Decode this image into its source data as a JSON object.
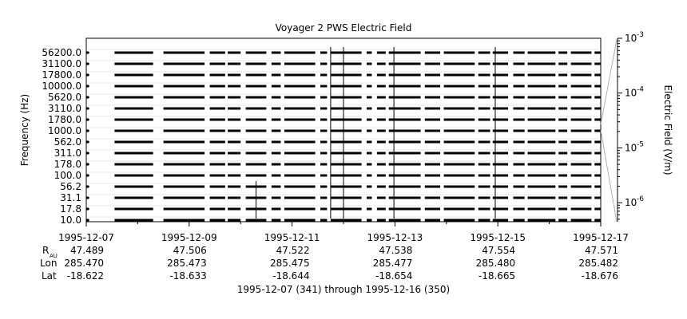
{
  "chart_data": {
    "type": "heatmap",
    "title": "Voyager 2 PWS Electric Field",
    "ylabel": "Frequency (Hz)",
    "colorbar_label": "Electric Field (V/m)",
    "colorbar_scale": "log",
    "colorbar_range": [
      4.5e-07,
      0.001
    ],
    "colorbar_ticks": [
      {
        "base": "10",
        "exp": "-3",
        "value": 0.001
      },
      {
        "base": "10",
        "exp": "-4",
        "value": 0.0001
      },
      {
        "base": "10",
        "exp": "-5",
        "value": 1e-05
      },
      {
        "base": "10",
        "exp": "-6",
        "value": 1e-06
      }
    ],
    "y_channels": [
      "56200.0",
      "31100.0",
      "17800.0",
      "10000.0",
      "5620.0",
      "3110.0",
      "1780.0",
      "1000.0",
      "562.0",
      "311.0",
      "178.0",
      "100.0",
      "56.2",
      "31.1",
      "17.8",
      "10.0"
    ],
    "x_range": [
      "1995-12-07",
      "1995-12-17"
    ],
    "x_ticks": [
      "1995-12-07",
      "1995-12-09",
      "1995-12-11",
      "1995-12-13",
      "1995-12-15",
      "1995-12-17"
    ],
    "ephemeris": {
      "labels": {
        "r": "R",
        "r_sub": "AU",
        "lon": "Lon",
        "lat": "Lat"
      },
      "r_au": [
        "47.489",
        "47.506",
        "47.522",
        "47.538",
        "47.554",
        "47.571"
      ],
      "lon": [
        "285.470",
        "285.473",
        "285.475",
        "285.477",
        "285.480",
        "285.482"
      ],
      "lat": [
        "-18.622",
        "-18.633",
        "-18.644",
        "-18.654",
        "-18.665",
        "-18.676"
      ]
    },
    "xlabel": "1995-12-07 (341) through 1995-12-16 (350)",
    "data_segments_days": [
      [
        0.0,
        0.05
      ],
      [
        0.55,
        1.3
      ],
      [
        1.4,
        1.38
      ],
      [
        1.5,
        2.3
      ],
      [
        2.4,
        2.7
      ],
      [
        2.75,
        3.0
      ],
      [
        3.1,
        3.5
      ],
      [
        3.6,
        3.78
      ],
      [
        3.85,
        4.45
      ],
      [
        4.55,
        4.68
      ],
      [
        4.75,
        5.35
      ],
      [
        5.45,
        5.55
      ],
      [
        5.65,
        5.82
      ],
      [
        5.88,
        6.5
      ],
      [
        6.58,
        6.88
      ],
      [
        6.95,
        7.55
      ],
      [
        7.62,
        7.85
      ],
      [
        7.9,
        8.2
      ],
      [
        8.3,
        8.52
      ],
      [
        8.58,
        9.12
      ],
      [
        9.18,
        9.35
      ],
      [
        9.42,
        9.82
      ],
      [
        9.88,
        10.0
      ]
    ],
    "spikes_days": [
      {
        "day": 4.75,
        "top_channel": 0
      },
      {
        "day": 5.0,
        "top_channel": 0
      },
      {
        "day": 5.98,
        "top_channel": 0
      },
      {
        "day": 7.95,
        "top_channel": 0
      },
      {
        "day": 3.3,
        "top_channel": 12
      }
    ]
  }
}
